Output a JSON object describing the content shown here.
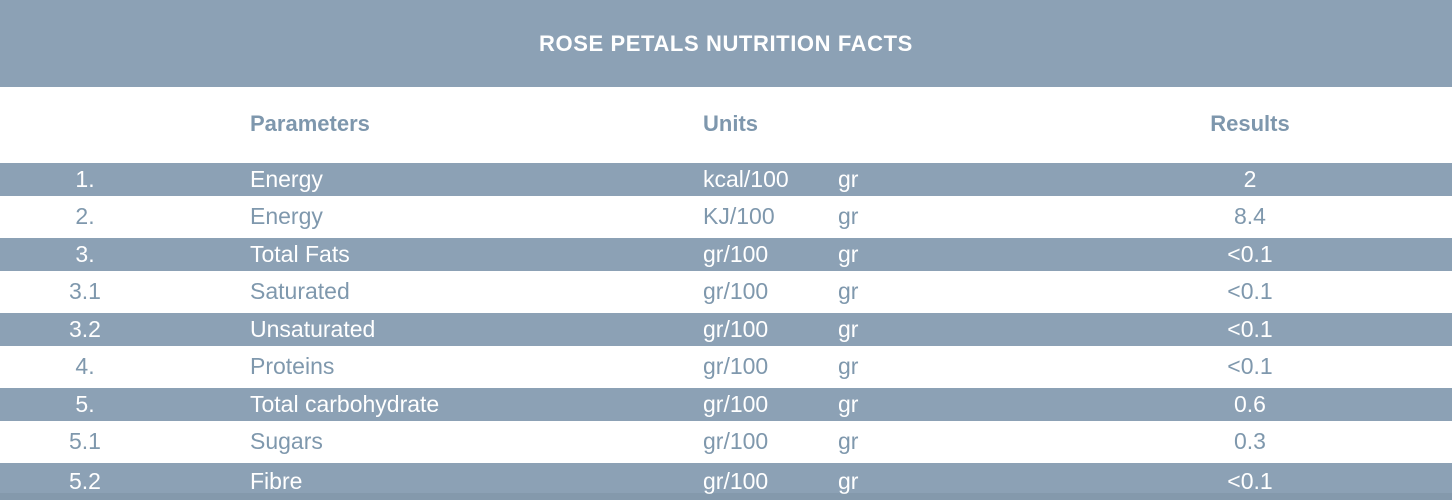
{
  "title": "ROSE PETALS NUTRITION FACTS",
  "columns": {
    "parameters": "Parameters",
    "units": "Units",
    "results": "Results"
  },
  "colors": {
    "band_blue": "#8ca1b5",
    "muted_text": "#7f98ad",
    "header_text": "#7e97ad",
    "title_text": "#ffffff"
  },
  "table": {
    "rows": [
      {
        "num": "1.",
        "parameter": "Energy",
        "unit": "kcal/100",
        "unit2": "gr",
        "result": "2",
        "highlight": true
      },
      {
        "num": "2.",
        "parameter": "Energy",
        "unit": "KJ/100",
        "unit2": "gr",
        "result": "8.4",
        "highlight": false
      },
      {
        "num": "3.",
        "parameter": "Total Fats",
        "unit": "gr/100",
        "unit2": "gr",
        "result": "<0.1",
        "highlight": true
      },
      {
        "num": "3.1",
        "parameter": "Saturated",
        "unit": "gr/100",
        "unit2": "gr",
        "result": "<0.1",
        "highlight": false
      },
      {
        "num": "3.2",
        "parameter": "Unsaturated",
        "unit": "gr/100",
        "unit2": "gr",
        "result": "<0.1",
        "highlight": true
      },
      {
        "num": "4.",
        "parameter": "Proteins",
        "unit": "gr/100",
        "unit2": "gr",
        "result": "<0.1",
        "highlight": false
      },
      {
        "num": "5.",
        "parameter": "Total carbohydrate",
        "unit": "gr/100",
        "unit2": "gr",
        "result": "0.6",
        "highlight": true
      },
      {
        "num": "5.1",
        "parameter": "Sugars",
        "unit": "gr/100",
        "unit2": "gr",
        "result": "0.3",
        "highlight": false
      },
      {
        "num": "5.2",
        "parameter": "Fibre",
        "unit": "gr/100",
        "unit2": "gr",
        "result": "<0.1",
        "highlight": true
      }
    ]
  }
}
